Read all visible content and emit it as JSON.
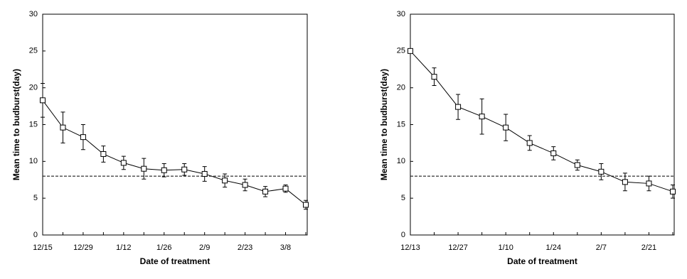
{
  "chart_data": [
    {
      "type": "line",
      "xlabel": "Date of treatment",
      "ylabel": "Mean time to budburst(day)",
      "categories": [
        "12/15",
        null,
        "12/29",
        null,
        "1/12",
        null,
        "1/26",
        null,
        "2/9",
        null,
        "2/23",
        null,
        "3/8",
        null
      ],
      "series": [
        {
          "color": "#000000",
          "values": [
            18.3,
            14.6,
            13.3,
            11.0,
            9.8,
            9.0,
            8.8,
            8.9,
            8.3,
            7.4,
            6.8,
            5.9,
            6.3,
            4.1
          ],
          "errors": [
            2.3,
            2.1,
            1.7,
            1.1,
            0.9,
            1.4,
            0.9,
            0.8,
            1.0,
            0.9,
            0.8,
            0.7,
            0.5,
            0.6
          ]
        }
      ],
      "reference_line": 8,
      "ylim": [
        0,
        30
      ],
      "yticks": [
        0,
        5,
        10,
        15,
        20,
        25,
        30
      ]
    },
    {
      "type": "line",
      "xlabel": "Date of treatment",
      "ylabel": "Mean time to budburst(day)",
      "categories": [
        "12/13",
        null,
        "12/27",
        null,
        "1/10",
        null,
        "1/24",
        null,
        "2/7",
        null,
        "2/21",
        null
      ],
      "series": [
        {
          "color": "#000000",
          "values": [
            25.0,
            21.5,
            17.4,
            16.1,
            14.6,
            12.5,
            11.1,
            9.5,
            8.6,
            7.2,
            7.0,
            5.9
          ],
          "errors": [
            0,
            1.2,
            1.7,
            2.4,
            1.8,
            1.0,
            0.9,
            0.7,
            1.1,
            1.2,
            1.0,
            0.9
          ]
        }
      ],
      "reference_line": 8,
      "ylim": [
        0,
        30
      ],
      "yticks": [
        0,
        5,
        10,
        15,
        20,
        25,
        30
      ]
    }
  ]
}
